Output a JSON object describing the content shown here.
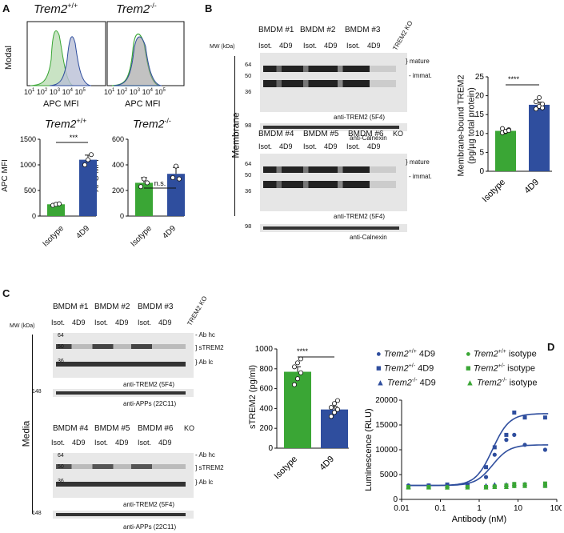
{
  "panels": {
    "A": "A",
    "B": "B",
    "C": "C",
    "D": "D"
  },
  "colors": {
    "green": "#3aa635",
    "blue": "#2f4e9e",
    "green_fill": "#c9e3c4",
    "blue_fill": "#b9bfd6"
  },
  "A": {
    "hist_titles": [
      "Trem2",
      "Trem2"
    ],
    "hist_title_sups": [
      "+/+",
      "-/-"
    ],
    "ylabel": "Modal",
    "xlabel": "APC MFI",
    "ticks": [
      "10",
      "10",
      "10",
      "10",
      "10"
    ],
    "tick_exps": [
      "1",
      "2",
      "3",
      "4",
      "5"
    ],
    "bar_titles": [
      "Trem2",
      "Trem2"
    ],
    "bar_title_sups": [
      "+/+",
      "-/-"
    ],
    "bar_ylabel": "APC MFI",
    "bar_ticks_left": [
      "0",
      "500",
      "1000",
      "1500"
    ],
    "bar_ticks_right": [
      "0",
      "200",
      "400",
      "600"
    ],
    "categories": [
      "Isotype",
      "4D9"
    ],
    "sig_left": "***",
    "sig_right": "n.s."
  },
  "B": {
    "mw_label": "MW (kDa)",
    "groups_top": [
      "BMDM #1",
      "BMDM #2",
      "BMDM #3"
    ],
    "groups_bottom": [
      "BMDM #4",
      "BMDM #5",
      "BMDM #6"
    ],
    "ko_label": "TREM2 KO",
    "ko_short": "KO",
    "lane_labels": [
      "Isot.",
      "4D9"
    ],
    "mw": [
      "64",
      "50",
      "36",
      "98"
    ],
    "band_labels": [
      "mature",
      "immat."
    ],
    "blot_labels": [
      "anti-TREM2 (5F4)",
      "anti-Calnexin"
    ],
    "side_label": "Membrane",
    "chart_ylabel": [
      "Membrane-bound TREM2",
      "(pg/µg total protein)"
    ],
    "chart_ticks": [
      "0",
      "5",
      "10",
      "15",
      "20",
      "25"
    ],
    "sig": "****"
  },
  "C": {
    "mw_label": "MW (kDa)",
    "groups_top": [
      "BMDM #1",
      "BMDM #2",
      "BMDM #3"
    ],
    "groups_bottom": [
      "BMDM #4",
      "BMDM #5",
      "BMDM #6"
    ],
    "ko_label": "TREM2 KO",
    "ko_short": "KO",
    "lane_labels": [
      "Isot.",
      "4D9"
    ],
    "mw": [
      "64",
      "50",
      "36",
      "148"
    ],
    "band_labels": [
      "Ab hc",
      "sTREM2",
      "Ab lc"
    ],
    "blot_labels": [
      "anti-TREM2 (5F4)",
      "anti-APPs (22C11)"
    ],
    "side_label": "Media",
    "chart_ylabel": "sTREM2 (pg/ml)",
    "chart_ticks": [
      "0",
      "200",
      "400",
      "600",
      "800",
      "1000"
    ],
    "sig": "****"
  },
  "D": {
    "legend": [
      {
        "g": "Trem2",
        "sup": "+/+",
        "ab": "4D9",
        "color": "#2f4e9e",
        "marker": "●"
      },
      {
        "g": "Trem2",
        "sup": "+/+",
        "ab": "isotype",
        "color": "#3aa635",
        "marker": "●"
      },
      {
        "g": "Trem2",
        "sup": "+/-",
        "ab": "4D9",
        "color": "#2f4e9e",
        "marker": "■"
      },
      {
        "g": "Trem2",
        "sup": "+/-",
        "ab": "isotype",
        "color": "#3aa635",
        "marker": "■"
      },
      {
        "g": "Trem2",
        "sup": "-/-",
        "ab": "4D9",
        "color": "#2f4e9e",
        "marker": "▲"
      },
      {
        "g": "Trem2",
        "sup": "-/-",
        "ab": "isotype",
        "color": "#3aa635",
        "marker": "▲"
      }
    ]
  },
  "chart_data": [
    {
      "id": "A-left",
      "type": "bar",
      "title": "Trem2 +/+",
      "ylabel": "APC MFI",
      "ylim": [
        0,
        1500
      ],
      "categories": [
        "Isotype",
        "4D9"
      ],
      "values": [
        230,
        1100
      ],
      "errors": [
        15,
        90
      ],
      "points": [
        [
          210,
          230,
          240
        ],
        [
          1000,
          1100,
          1200
        ]
      ]
    },
    {
      "id": "A-right",
      "type": "bar",
      "title": "Trem2 -/-",
      "ylabel": "APC MFI",
      "ylim": [
        0,
        600
      ],
      "categories": [
        "Isotype",
        "4D9"
      ],
      "values": [
        260,
        330
      ],
      "errors": [
        40,
        50
      ],
      "points": [
        [
          230,
          290,
          260
        ],
        [
          300,
          390,
          290
        ]
      ]
    },
    {
      "id": "B-chart",
      "type": "bar",
      "ylabel": "Membrane-bound TREM2 (pg/µg total protein)",
      "ylim": [
        0,
        25
      ],
      "categories": [
        "Isotype",
        "4D9"
      ],
      "values": [
        10.7,
        17.6
      ],
      "errors": [
        0.4,
        0.7
      ],
      "points": [
        [
          10.2,
          10.5,
          11.0,
          11.3,
          10.6,
          10.8
        ],
        [
          16.5,
          17.2,
          17.8,
          18.4,
          19.5,
          16.8
        ]
      ]
    },
    {
      "id": "C-chart",
      "type": "bar",
      "ylabel": "sTREM2 (pg/ml)",
      "ylim": [
        0,
        1000
      ],
      "categories": [
        "Isotype",
        "4D9"
      ],
      "values": [
        770,
        390
      ],
      "errors": [
        50,
        30
      ],
      "points": [
        [
          640,
          700,
          760,
          820,
          860,
          900
        ],
        [
          320,
          360,
          390,
          410,
          450,
          480
        ]
      ]
    },
    {
      "id": "D-chart",
      "type": "scatter",
      "xlabel": "Antibody (nM)",
      "ylabel": "Luminescence (RLU)",
      "xscale": "log",
      "xlim": [
        0.01,
        100
      ],
      "ylim": [
        0,
        20000
      ],
      "xticks": [
        "0.01",
        "0.1",
        "1",
        "10",
        "100"
      ],
      "yticks": [
        "0",
        "5000",
        "10000",
        "15000",
        "20000"
      ],
      "x": [
        0.015,
        0.05,
        0.15,
        0.5,
        1.5,
        2.5,
        5,
        8,
        15,
        50
      ],
      "series": [
        {
          "name": "Trem2 +/+ 4D9",
          "color": "#2f4e9e",
          "marker": "circle",
          "values": [
            2800,
            2800,
            2900,
            2900,
            4500,
            9000,
            12000,
            13000,
            11000,
            10000
          ],
          "fit_top": 11000
        },
        {
          "name": "Trem2 +/- 4D9",
          "color": "#2f4e9e",
          "marker": "square",
          "values": [
            2600,
            2800,
            3000,
            3000,
            6500,
            10500,
            13000,
            17500,
            16500,
            16500
          ],
          "fit_top": 17300
        },
        {
          "name": "Trem2 -/- 4D9",
          "color": "#2f4e9e",
          "marker": "triangle",
          "values": [
            2500,
            2600,
            2700,
            2700,
            2800,
            3000,
            3000,
            3100,
            3100,
            3000
          ]
        },
        {
          "name": "Trem2 +/+ isotype",
          "color": "#3aa635",
          "marker": "circle",
          "values": [
            2500,
            2500,
            2500,
            2500,
            2500,
            2600,
            2600,
            2700,
            2800,
            2900
          ]
        },
        {
          "name": "Trem2 +/- isotype",
          "color": "#3aa635",
          "marker": "square",
          "values": [
            2500,
            2500,
            2400,
            2500,
            2500,
            2600,
            2800,
            3100,
            3000,
            3200
          ]
        },
        {
          "name": "Trem2 -/- isotype",
          "color": "#3aa635",
          "marker": "triangle",
          "values": [
            2400,
            2400,
            2400,
            2400,
            2400,
            2500,
            2500,
            2700,
            2700,
            2700
          ]
        }
      ]
    }
  ]
}
